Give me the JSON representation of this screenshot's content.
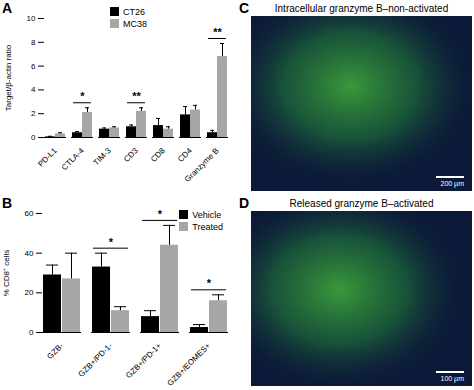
{
  "chart_data": [
    {
      "type": "bar",
      "panel": "A",
      "y_label": "Target/β-actin ratio",
      "categories": [
        "PD-L1",
        "CTLA-4",
        "TIM-3",
        "CD3",
        "CD8",
        "CD4",
        "Granzyme B"
      ],
      "series": [
        {
          "name": "CT26",
          "color": "#000000",
          "values": [
            0.05,
            0.4,
            0.7,
            0.9,
            1.0,
            1.9,
            0.4
          ],
          "errors": [
            0.05,
            0.1,
            0.1,
            0.15,
            0.6,
            0.7,
            0.2
          ]
        },
        {
          "name": "MC38",
          "color": "#a6a6a6",
          "values": [
            0.3,
            2.1,
            0.8,
            2.2,
            0.7,
            2.3,
            6.8
          ],
          "errors": [
            0.1,
            0.4,
            0.1,
            0.3,
            0.2,
            0.4,
            1.1
          ]
        }
      ],
      "ylim": [
        0,
        10
      ],
      "yticks": [
        0,
        2,
        4,
        6,
        8,
        10
      ],
      "legend": "top",
      "annotations": [
        {
          "category": "CTLA-4",
          "text": "*"
        },
        {
          "category": "CD3",
          "text": "**"
        },
        {
          "category": "Granzyme B",
          "text": "**"
        }
      ]
    },
    {
      "type": "bar",
      "panel": "B",
      "y_label": "% CD8⁺ cells",
      "categories": [
        "GZB-",
        "GZB+/PD-1-",
        "GZB+/PD-1+",
        "GZB+/EOMES+"
      ],
      "series": [
        {
          "name": "Vehicle",
          "color": "#000000",
          "values": [
            29,
            33,
            8,
            2.5
          ],
          "errors": [
            5,
            7,
            3,
            1.5
          ]
        },
        {
          "name": "Treated",
          "color": "#a6a6a6",
          "values": [
            27,
            11,
            44,
            16
          ],
          "errors": [
            13,
            2,
            10,
            3
          ]
        }
      ],
      "ylim": [
        0,
        60
      ],
      "yticks": [
        0,
        20,
        40,
        60
      ],
      "legend": "top-right",
      "annotations": [
        {
          "category": "GZB+/PD-1-",
          "text": "*"
        },
        {
          "category": "GZB+/PD-1+",
          "text": "*"
        },
        {
          "category": "GZB+/EOMES+",
          "text": "*"
        }
      ]
    },
    {
      "type": "image",
      "panel": "C",
      "title": "Intracellular granzyme B–non-activated",
      "scale_bar": "200 μm"
    },
    {
      "type": "image",
      "panel": "D",
      "title": "Released granzyme B–activated",
      "scale_bar": "100 μm"
    }
  ]
}
